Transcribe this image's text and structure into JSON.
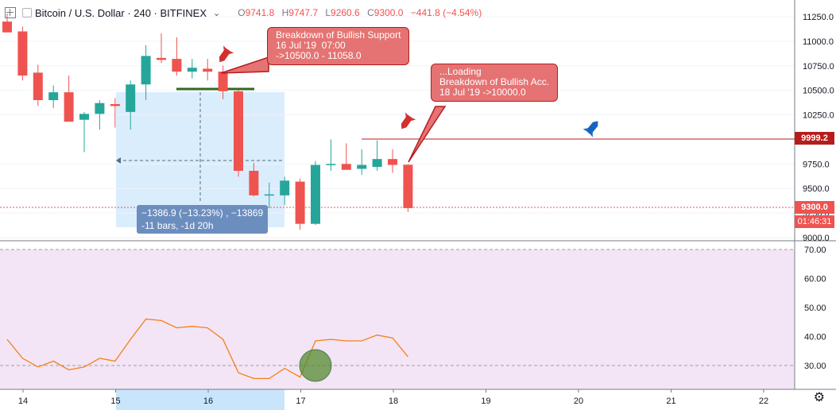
{
  "header": {
    "symbol": "Bitcoin / U.S. Dollar · 240 · BITFINEX",
    "open_label": "O",
    "open": "9741.8",
    "high_label": "H",
    "high": "9747.7",
    "low_label": "L",
    "low": "9260.6",
    "close_label": "C",
    "close": "9300.0",
    "change": "−441.8 (−4.54%)"
  },
  "price_axis": {
    "ticks": [
      "11250.0",
      "11000.0",
      "10750.0",
      "10500.0",
      "10250.0",
      "9750.0",
      "9500.0",
      "9250.0",
      "9000.0"
    ]
  },
  "rsi_axis": {
    "ticks": [
      "70.00",
      "60.00",
      "50.00",
      "40.00",
      "30.00"
    ]
  },
  "time_axis": {
    "ticks": [
      "14",
      "15",
      "16",
      "17",
      "18",
      "19",
      "20",
      "21",
      "22"
    ]
  },
  "labels": {
    "resistance": "9999.2",
    "last_price": "9300.0",
    "countdown": "01:46:31"
  },
  "callout1": "Breakdown of Bullish Support\n16 Jul '19  07:00\n->10500.0 - 11058.0",
  "callout2": "...Loading\nBreakdown of Bullish Acc.\n18 Jul '19 ->10000.0",
  "measure": "−1386.9 (−13.23%) , −13869\n-11 bars, -1d 20h",
  "colors": {
    "up": "#26a69a",
    "down": "#ef5350",
    "rsi": "#f57f17",
    "callout": "#e57373"
  },
  "chart_data": {
    "type": "candlestick",
    "price_ylim": [
      9000,
      11300
    ],
    "candles": [
      {
        "o": 11200,
        "h": 11280,
        "l": 11100,
        "c": 11090
      },
      {
        "o": 11100,
        "h": 11150,
        "l": 10600,
        "c": 10650
      },
      {
        "o": 10680,
        "h": 10760,
        "l": 10340,
        "c": 10400
      },
      {
        "o": 10400,
        "h": 10550,
        "l": 10320,
        "c": 10480
      },
      {
        "o": 10480,
        "h": 10650,
        "l": 10200,
        "c": 10180
      },
      {
        "o": 10200,
        "h": 10280,
        "l": 9870,
        "c": 10260
      },
      {
        "o": 10260,
        "h": 10400,
        "l": 10100,
        "c": 10370
      },
      {
        "o": 10360,
        "h": 10420,
        "l": 10120,
        "c": 10340
      },
      {
        "o": 10280,
        "h": 10600,
        "l": 10100,
        "c": 10560
      },
      {
        "o": 10560,
        "h": 10960,
        "l": 10400,
        "c": 10850
      },
      {
        "o": 10830,
        "h": 11080,
        "l": 10780,
        "c": 10810
      },
      {
        "o": 10820,
        "h": 11040,
        "l": 10650,
        "c": 10690
      },
      {
        "o": 10690,
        "h": 10820,
        "l": 10620,
        "c": 10730
      },
      {
        "o": 10720,
        "h": 10820,
        "l": 10600,
        "c": 10690
      },
      {
        "o": 10690,
        "h": 10750,
        "l": 10410,
        "c": 10490
      },
      {
        "o": 10490,
        "h": 10500,
        "l": 9620,
        "c": 9680
      },
      {
        "o": 9680,
        "h": 9760,
        "l": 9420,
        "c": 9430
      },
      {
        "o": 9430,
        "h": 9560,
        "l": 9300,
        "c": 9440
      },
      {
        "o": 9430,
        "h": 9620,
        "l": 9330,
        "c": 9580
      },
      {
        "o": 9570,
        "h": 9600,
        "l": 9080,
        "c": 9140
      },
      {
        "o": 9140,
        "h": 9780,
        "l": 9130,
        "c": 9740
      },
      {
        "o": 9740,
        "h": 10000,
        "l": 9680,
        "c": 9750
      },
      {
        "o": 9750,
        "h": 9960,
        "l": 9700,
        "c": 9690
      },
      {
        "o": 9700,
        "h": 9900,
        "l": 9640,
        "c": 9740
      },
      {
        "o": 9720,
        "h": 9990,
        "l": 9680,
        "c": 9800
      },
      {
        "o": 9800,
        "h": 9900,
        "l": 9660,
        "c": 9740
      },
      {
        "o": 9741.8,
        "h": 9747.7,
        "l": 9260.6,
        "c": 9300
      }
    ],
    "rsi": [
      39,
      32.5,
      29.5,
      31.5,
      28.5,
      29.5,
      32.5,
      31.5,
      39,
      46,
      45.5,
      43,
      43.5,
      43,
      39,
      27.5,
      25.5,
      25.5,
      29,
      26,
      38.5,
      39,
      38.5,
      38.5,
      40.5,
      39.5,
      33
    ],
    "rsi_ylim": [
      25,
      70
    ],
    "resistance": 9999.2,
    "last_price": 9300.0
  }
}
